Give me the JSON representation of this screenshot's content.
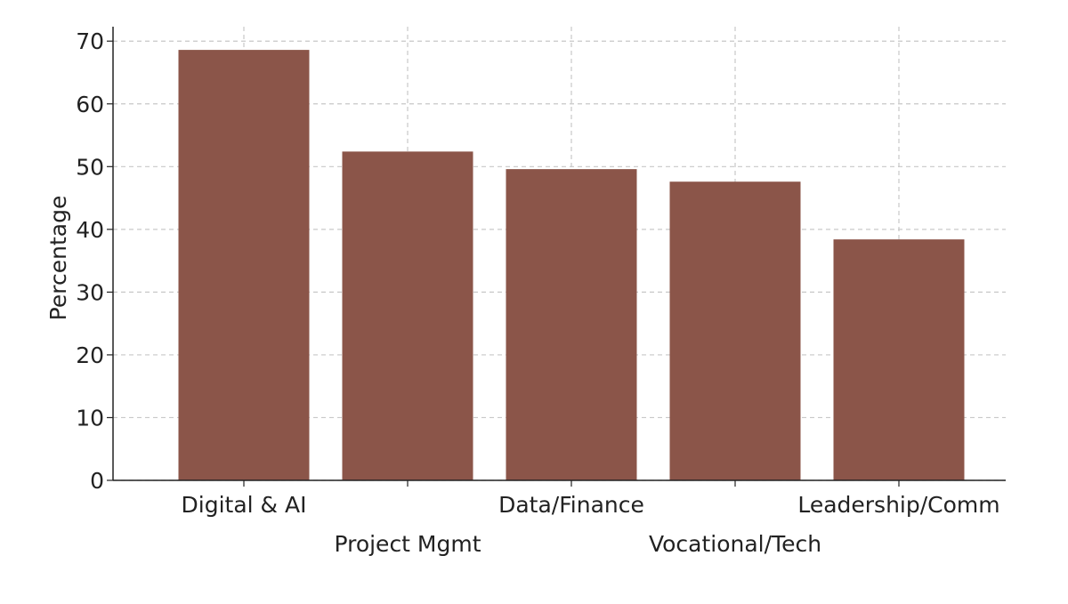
{
  "chart_data": {
    "type": "bar",
    "title": "",
    "xlabel": "",
    "ylabel": "Percentage",
    "categories": [
      "Digital & AI",
      "Project Mgmt",
      "Data/Finance",
      "Vocational/Tech",
      "Leadership/Comm"
    ],
    "values": [
      68.6,
      52.4,
      49.6,
      47.6,
      38.4
    ],
    "ylim": [
      0,
      72.3
    ],
    "yticks": [
      0,
      10,
      20,
      30,
      40,
      50,
      60,
      70
    ],
    "grid": true,
    "bar_color": "#8b5549",
    "legend": "none"
  }
}
